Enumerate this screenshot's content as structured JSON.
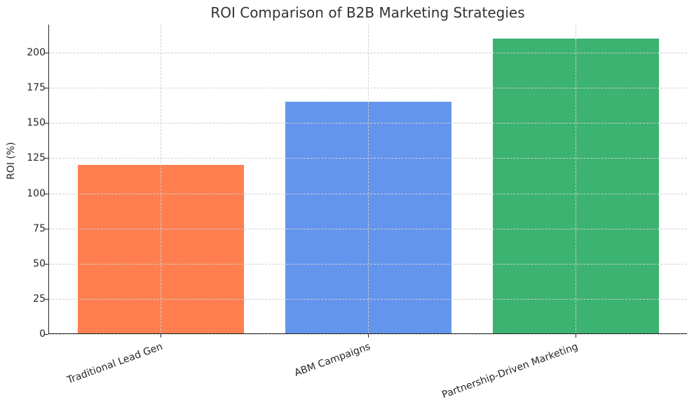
{
  "chart_data": {
    "type": "bar",
    "title": "ROI Comparison of B2B Marketing Strategies",
    "xlabel": "",
    "ylabel": "ROI (%)",
    "categories": [
      "Traditional Lead Gen",
      "ABM Campaigns",
      "Partnership-Driven Marketing"
    ],
    "values": [
      120,
      165,
      210
    ],
    "colors": [
      "#ff7f50",
      "#6495ed",
      "#3cb371"
    ],
    "ylim": [
      0,
      220
    ],
    "yticks": [
      0,
      25,
      50,
      75,
      100,
      125,
      150,
      175,
      200
    ],
    "grid": true,
    "legend": null
  }
}
